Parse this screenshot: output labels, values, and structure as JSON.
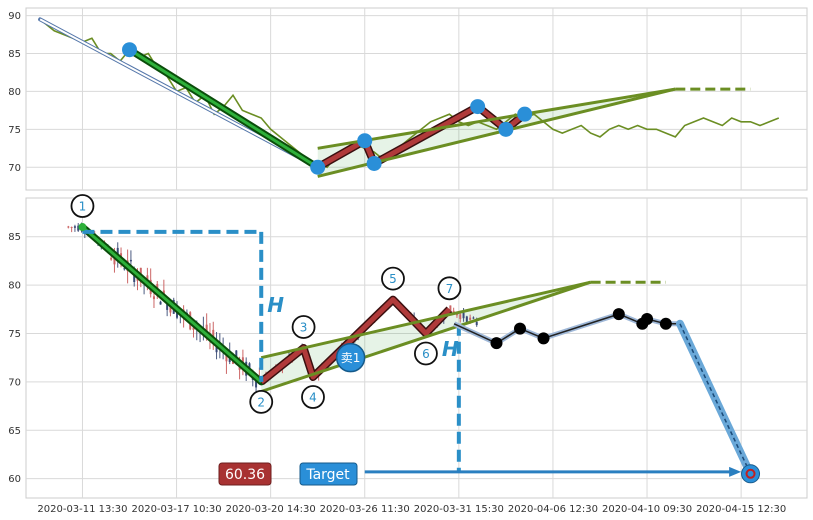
{
  "chart_data": [
    {
      "type": "line",
      "panel": "top",
      "ylim": [
        67,
        91
      ],
      "yticks": [
        70,
        75,
        80,
        85,
        90
      ],
      "grid": true,
      "price": [
        [
          0.5,
          89.5
        ],
        [
          1,
          89
        ],
        [
          2,
          88
        ],
        [
          3,
          87.5
        ],
        [
          4,
          87
        ],
        [
          5,
          86.5
        ],
        [
          6,
          87
        ],
        [
          7,
          85
        ],
        [
          8,
          85
        ],
        [
          9,
          84
        ],
        [
          10,
          85.5
        ],
        [
          11,
          84.5
        ],
        [
          12,
          85
        ],
        [
          13,
          83
        ],
        [
          14,
          82
        ],
        [
          15,
          80
        ],
        [
          16,
          80.5
        ],
        [
          17,
          78.5
        ],
        [
          18,
          79.5
        ],
        [
          19,
          77
        ],
        [
          20,
          78
        ],
        [
          21,
          79.5
        ],
        [
          22,
          77.5
        ],
        [
          23,
          77
        ],
        [
          24,
          76.5
        ],
        [
          25,
          75
        ],
        [
          26,
          74
        ],
        [
          27,
          73
        ],
        [
          28,
          72
        ],
        [
          29,
          71
        ],
        [
          30,
          70.5
        ],
        [
          31,
          70
        ],
        [
          32,
          71.5
        ],
        [
          33,
          72
        ],
        [
          34,
          73
        ],
        [
          35,
          72.5
        ],
        [
          36,
          72
        ],
        [
          37,
          71
        ],
        [
          38,
          72
        ],
        [
          39,
          73
        ],
        [
          40,
          74
        ],
        [
          41,
          75
        ],
        [
          42,
          76
        ],
        [
          43,
          76.5
        ],
        [
          44,
          77
        ],
        [
          45,
          76
        ],
        [
          46,
          75.5
        ],
        [
          47,
          76
        ],
        [
          48,
          75.5
        ],
        [
          49,
          75
        ],
        [
          50,
          76
        ],
        [
          51,
          77
        ],
        [
          52,
          76.5
        ],
        [
          53,
          77
        ],
        [
          54,
          76
        ],
        [
          55,
          75
        ],
        [
          56,
          74.5
        ],
        [
          57,
          75
        ],
        [
          58,
          75.5
        ],
        [
          59,
          74.5
        ],
        [
          60,
          74
        ],
        [
          61,
          75
        ],
        [
          62,
          75.5
        ],
        [
          63,
          75
        ],
        [
          64,
          75.5
        ],
        [
          65,
          75
        ],
        [
          66,
          75
        ],
        [
          67,
          74.5
        ],
        [
          68,
          74
        ],
        [
          69,
          75.5
        ],
        [
          70,
          76
        ],
        [
          71,
          76.5
        ],
        [
          72,
          76
        ],
        [
          73,
          75.5
        ],
        [
          74,
          76.5
        ],
        [
          75,
          76
        ],
        [
          76,
          76
        ],
        [
          77,
          75.5
        ],
        [
          78,
          76
        ],
        [
          79,
          76.5
        ]
      ],
      "zigzag": [
        [
          10,
          85.5
        ],
        [
          30,
          70
        ],
        [
          35,
          73.5
        ],
        [
          36,
          70.5
        ],
        [
          47,
          78
        ],
        [
          50,
          75
        ],
        [
          52,
          77
        ]
      ],
      "triangle_upper": [
        [
          30,
          72.5
        ],
        [
          68,
          80.3
        ]
      ],
      "triangle_lower": [
        [
          30,
          68.8
        ],
        [
          68,
          80.3
        ]
      ],
      "triangle_extension": [
        [
          68,
          80.3
        ],
        [
          76,
          80.3
        ]
      ],
      "projection": [
        [
          0.5,
          89.5
        ],
        [
          30,
          70
        ]
      ],
      "points": [
        [
          10,
          85.5
        ],
        [
          30,
          70
        ],
        [
          35,
          73.5
        ],
        [
          36,
          70.5
        ],
        [
          47,
          78
        ],
        [
          50,
          75
        ],
        [
          52,
          77
        ]
      ]
    },
    {
      "type": "candlestick",
      "panel": "bottom",
      "ylim": [
        58,
        89
      ],
      "yticks": [
        60,
        65,
        70,
        75,
        80,
        85
      ],
      "grid": true,
      "xticks": [
        {
          "x": 5,
          "label": "2020-03-11 13:30"
        },
        {
          "x": 15,
          "label": "2020-03-17 10:30"
        },
        {
          "x": 25,
          "label": "2020-03-20 14:30"
        },
        {
          "x": 35,
          "label": "2020-03-26 11:30"
        },
        {
          "x": 45,
          "label": "2020-03-31 15:30"
        },
        {
          "x": 55,
          "label": "2020-04-06 12:30"
        },
        {
          "x": 65,
          "label": "2020-04-10 09:30"
        },
        {
          "x": 75,
          "label": "2020-04-15 12:30"
        }
      ],
      "zigzag": [
        [
          5,
          86
        ],
        [
          24,
          70
        ],
        [
          28.5,
          73.5
        ],
        [
          29.5,
          70.5
        ],
        [
          38,
          78.5
        ],
        [
          41.5,
          75
        ],
        [
          44,
          77.5
        ]
      ],
      "pattern_labels": [
        {
          "text": "1",
          "x": 5,
          "y": 86
        },
        {
          "text": "2",
          "x": 24,
          "y": 70
        },
        {
          "text": "3",
          "x": 28.5,
          "y": 73.5
        },
        {
          "text": "4",
          "x": 29.5,
          "y": 70.5
        },
        {
          "text": "5",
          "x": 38,
          "y": 78.5
        },
        {
          "text": "6",
          "x": 41.5,
          "y": 75
        },
        {
          "text": "7",
          "x": 44,
          "y": 77.5
        }
      ],
      "triangle_upper": [
        [
          24,
          72.5
        ],
        [
          59,
          80.3
        ]
      ],
      "triangle_lower": [
        [
          24,
          69
        ],
        [
          59,
          80.3
        ]
      ],
      "triangle_extension": [
        [
          59,
          80.3
        ],
        [
          67,
          80.3
        ]
      ],
      "measure_h": {
        "label": "H",
        "x": 24,
        "top": 85.5,
        "bottom": 70
      },
      "target_h": {
        "label": "H",
        "x": 45,
        "top": 76,
        "bottom": 60.7
      },
      "sell_marker": {
        "text": "卖1",
        "x": 33.5,
        "y": 72.5
      },
      "forecast": [
        [
          44.5,
          76
        ],
        [
          49,
          74
        ],
        [
          51.5,
          75.5
        ],
        [
          54,
          74.5
        ],
        [
          62,
          77
        ],
        [
          64.5,
          76
        ],
        [
          65,
          76.5
        ],
        [
          67,
          76
        ],
        [
          68.5,
          76
        ],
        [
          76,
          60.5
        ]
      ],
      "forecast_points": [
        [
          49,
          74
        ],
        [
          51.5,
          75.5
        ],
        [
          54,
          74.5
        ],
        [
          62,
          77
        ],
        [
          64.5,
          76
        ],
        [
          65,
          76.5
        ],
        [
          67,
          76
        ]
      ],
      "target_point": {
        "x": 76,
        "y": 60.5
      },
      "target_arrow": {
        "from": 35,
        "to": 75,
        "y": 60.7
      },
      "price_badge": "60.36",
      "target_label": "Target"
    }
  ]
}
